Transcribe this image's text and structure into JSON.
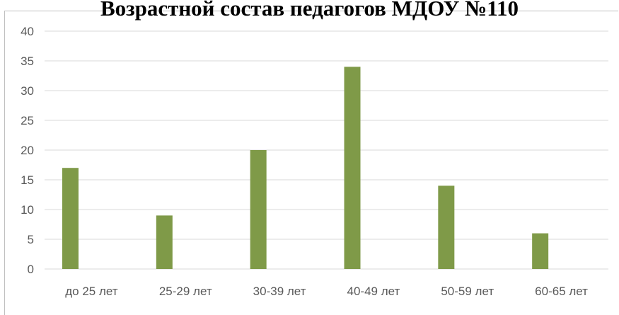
{
  "chart_data": {
    "type": "bar",
    "title": "Возрастной состав педагогов МДОУ №110",
    "xlabel": "",
    "ylabel": "",
    "categories": [
      "до 25 лет",
      "25-29 лет",
      "30-39 лет",
      "40-49 лет",
      "50-59 лет",
      "60-65 лет"
    ],
    "values": [
      17,
      9,
      20,
      34,
      14,
      6
    ],
    "ylim": [
      0,
      40
    ],
    "yticks": [
      0,
      5,
      10,
      15,
      20,
      25,
      30,
      35,
      40
    ],
    "grid": true,
    "legend": "none",
    "bar_color": "#7f9a48",
    "grid_color": "#d9d9d9",
    "tick_color": "#595959"
  }
}
